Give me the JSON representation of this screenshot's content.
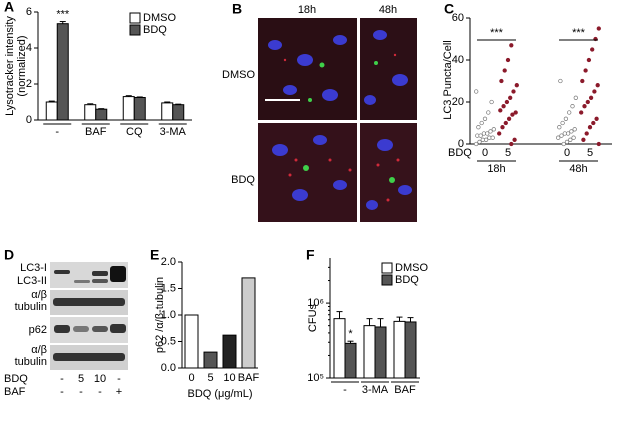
{
  "chart_data": [
    {
      "type": "grouped_bar",
      "label": "A",
      "ylabel": [
        "Lysotracker intensity",
        "(normalized)"
      ],
      "categories": [
        "-",
        "BAF",
        "CQ",
        "3-MA"
      ],
      "series": [
        {
          "name": "DMSO",
          "color": "#ffffff",
          "values": [
            1.0,
            0.85,
            1.3,
            0.95
          ],
          "errors": [
            0.05,
            0.05,
            0.05,
            0.05
          ]
        },
        {
          "name": "BDQ",
          "color": "#555555",
          "values": [
            5.35,
            0.6,
            1.25,
            0.85
          ],
          "errors": [
            0.12,
            0.03,
            0.03,
            0.03
          ]
        }
      ],
      "ylim": [
        0,
        6
      ],
      "yticks": [
        0,
        2,
        4,
        6
      ],
      "annotations": [
        "***"
      ]
    },
    {
      "type": "dotplot",
      "label": "C",
      "ylabel": "LC3 Puncta/Cell",
      "x_label": "BDQ",
      "categories": [
        "0",
        "5",
        "0",
        "5"
      ],
      "groups": [
        "18h",
        "48h"
      ],
      "colors": [
        "#ffffff",
        "#8b1a2b",
        "#ffffff",
        "#8b1a2b"
      ],
      "points": [
        [
          0,
          1,
          2,
          2,
          3,
          3,
          4,
          4,
          5,
          5,
          6,
          7,
          8,
          10,
          12,
          15,
          20,
          25
        ],
        [
          0,
          2,
          5,
          8,
          10,
          12,
          14,
          15,
          16,
          18,
          20,
          22,
          25,
          28,
          30,
          35,
          40,
          47
        ],
        [
          0,
          1,
          2,
          3,
          3,
          4,
          5,
          5,
          6,
          7,
          8,
          10,
          12,
          15,
          18,
          22,
          30
        ],
        [
          0,
          2,
          5,
          8,
          10,
          12,
          15,
          18,
          20,
          22,
          25,
          28,
          30,
          35,
          40,
          45,
          50,
          55
        ]
      ],
      "ylim": [
        0,
        60
      ],
      "yticks": [
        0,
        20,
        40,
        60
      ],
      "annotations": [
        "***",
        "***"
      ]
    },
    {
      "type": "bar",
      "label": "E",
      "ylabel": "p62 /α/β-tubulin",
      "xlabel": "BDQ (μg/mL)",
      "categories": [
        "0",
        "5",
        "10",
        "BAF"
      ],
      "values": [
        1.0,
        0.3,
        0.62,
        1.7
      ],
      "colors": [
        "#ffffff",
        "#555555",
        "#222222",
        "#cccccc"
      ],
      "ylim": [
        0,
        2
      ],
      "yticks": [
        {
          "value": 0,
          "label": "0.0"
        },
        {
          "value": 0.5,
          "label": "0.5"
        },
        {
          "value": 1,
          "label": "1.0"
        },
        {
          "value": 1.5,
          "label": "1.5"
        },
        {
          "value": 2,
          "label": "2.0"
        }
      ]
    },
    {
      "type": "grouped_bar",
      "label": "F",
      "ylabel": [
        "CFUs"
      ],
      "log": true,
      "categories": [
        "-",
        "3-MA",
        "BAF"
      ],
      "series": [
        {
          "name": "DMSO",
          "color": "#ffffff",
          "values": [
            620000,
            500000,
            570000
          ],
          "errors": [
            150000,
            120000,
            80000
          ]
        },
        {
          "name": "BDQ",
          "color": "#555555",
          "values": [
            290000,
            480000,
            560000
          ],
          "errors": [
            20000,
            140000,
            80000
          ]
        }
      ],
      "ylim": [
        100000,
        4000000
      ],
      "yticks": [
        {
          "value": 100000,
          "label": "10⁵"
        },
        {
          "value": 1000000,
          "label": "10⁶"
        }
      ],
      "annotations": [
        "*"
      ]
    }
  ],
  "micrograph": {
    "label": "B",
    "columns": [
      "18h",
      "48h"
    ],
    "rows": [
      "DMSO",
      "BDQ"
    ]
  },
  "blot": {
    "label": "D",
    "bands": [
      "LC3-I",
      "LC3-II",
      "α/β",
      "tubulin",
      "p62",
      "α/β",
      "tubulin"
    ],
    "treatments": [
      {
        "name": "BDQ",
        "lanes": [
          "-",
          "5",
          "10",
          "-"
        ]
      },
      {
        "name": "BAF",
        "lanes": [
          "-",
          "-",
          "-",
          "+"
        ]
      }
    ]
  }
}
